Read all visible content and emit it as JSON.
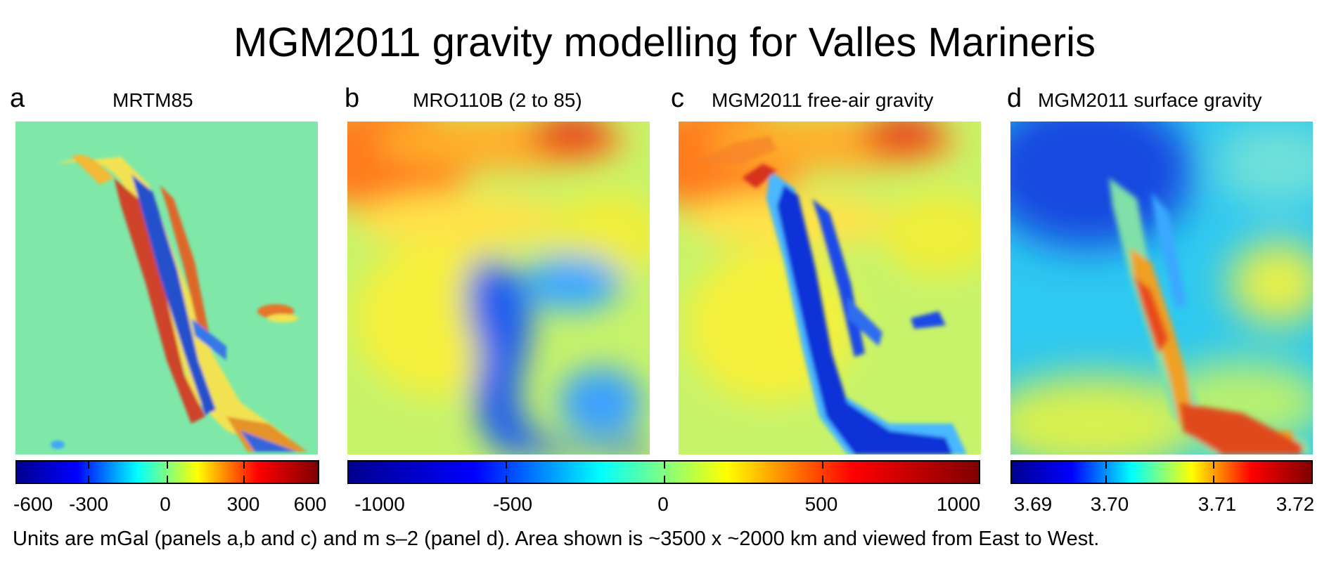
{
  "title": "MGM2011 gravity modelling for Valles Marineris",
  "panels": [
    {
      "letter": "a",
      "title": "MRTM85"
    },
    {
      "letter": "b",
      "title": "MRO110B (2 to 85)"
    },
    {
      "letter": "c",
      "title": "MGM2011 free-air gravity"
    },
    {
      "letter": "d",
      "title": "MGM2011 surface gravity"
    }
  ],
  "colorbars": [
    {
      "ticks": [
        "-600",
        "-300",
        "0",
        "300",
        "600"
      ],
      "values": [
        -600,
        -300,
        0,
        300,
        600
      ],
      "min": -600,
      "max": 600
    },
    {
      "ticks": [
        "-1000",
        "-500",
        "0",
        "500",
        "1000"
      ],
      "values": [
        -1000,
        -500,
        0,
        500,
        1000
      ],
      "min": -1000,
      "max": 1000
    },
    {
      "ticks": [
        "3.69",
        "3.70",
        "3.71",
        "3.72"
      ],
      "values": [
        3.69,
        3.7,
        3.71,
        3.72
      ],
      "min": 3.69,
      "max": 3.72
    }
  ],
  "colormap": "jet",
  "footer": "Units are mGal (panels a,b and c) and m s–2 (panel d).  Area shown is ~3500 x ~2000 km and viewed from East to West."
}
